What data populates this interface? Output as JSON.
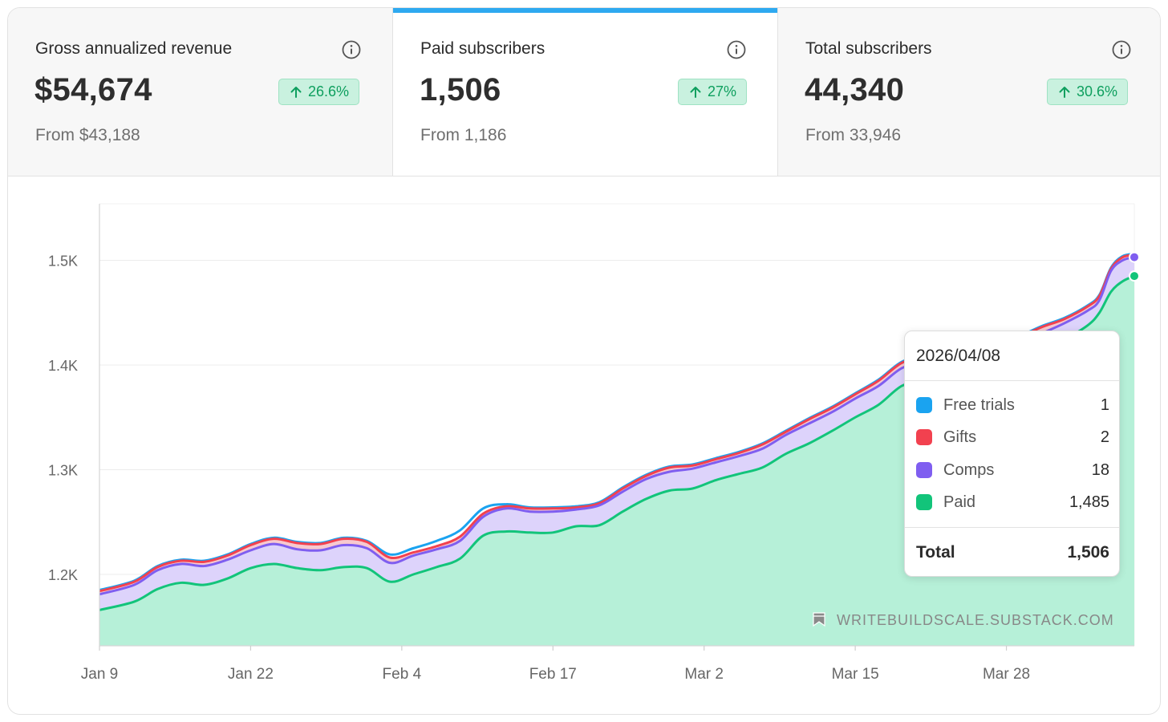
{
  "stats": [
    {
      "label": "Gross annualized revenue",
      "value": "$54,674",
      "change": "26.6%",
      "from": "From $43,188",
      "active": false
    },
    {
      "label": "Paid subscribers",
      "value": "1,506",
      "change": "27%",
      "from": "From 1,186",
      "active": true
    },
    {
      "label": "Total subscribers",
      "value": "44,340",
      "change": "30.6%",
      "from": "From 33,946",
      "active": false
    }
  ],
  "colors": {
    "free_trials": "#1aa3f0",
    "gifts": "#f2414f",
    "comps": "#7f5ef0",
    "paid": "#12c47a",
    "paid_fill": "#b6f0d8",
    "comps_fill": "#ddd3fb",
    "accent": "#2ea9f0",
    "badge_text": "#0e9f5e"
  },
  "icons": {
    "info": "info-icon",
    "trend": "arrow-up-icon",
    "watermark": "bookmark-icon"
  },
  "watermark": "WRITEBUILDSCALE.SUBSTACK.COM",
  "tooltip": {
    "date": "2026/04/08",
    "rows": [
      {
        "name": "Free trials",
        "value": "1",
        "color": "#1aa3f0"
      },
      {
        "name": "Gifts",
        "value": "2",
        "color": "#f2414f"
      },
      {
        "name": "Comps",
        "value": "18",
        "color": "#7f5ef0"
      },
      {
        "name": "Paid",
        "value": "1,485",
        "color": "#12c47a"
      }
    ],
    "total_label": "Total",
    "total_value": "1,506"
  },
  "chart_data": {
    "type": "area",
    "stacked": true,
    "x_start": "2026-01-09",
    "x_end": "2026-04-08",
    "x_tick_labels": [
      "Jan 9",
      "Jan 22",
      "Feb 4",
      "Feb 17",
      "Mar 2",
      "Mar 15",
      "Mar 28"
    ],
    "y_ticks": [
      1200,
      1300,
      1400,
      1500
    ],
    "y_tick_labels": [
      "1.2K",
      "1.3K",
      "1.4K",
      "1.5K"
    ],
    "ylim": [
      1131,
      1554
    ],
    "grid": true,
    "series": [
      {
        "name": "Paid",
        "points": [
          [
            "2026-01-09",
            1166
          ],
          [
            "2026-01-12",
            1174
          ],
          [
            "2026-01-14",
            1186
          ],
          [
            "2026-01-16",
            1192
          ],
          [
            "2026-01-18",
            1190
          ],
          [
            "2026-01-20",
            1196
          ],
          [
            "2026-01-22",
            1206
          ],
          [
            "2026-01-24",
            1210
          ],
          [
            "2026-01-26",
            1206
          ],
          [
            "2026-01-28",
            1204
          ],
          [
            "2026-01-30",
            1207
          ],
          [
            "2026-02-01",
            1206
          ],
          [
            "2026-02-03",
            1193
          ],
          [
            "2026-02-05",
            1200
          ],
          [
            "2026-02-07",
            1207
          ],
          [
            "2026-02-09",
            1215
          ],
          [
            "2026-02-11",
            1237
          ],
          [
            "2026-02-13",
            1241
          ],
          [
            "2026-02-15",
            1240
          ],
          [
            "2026-02-17",
            1240
          ],
          [
            "2026-02-19",
            1246
          ],
          [
            "2026-02-21",
            1247
          ],
          [
            "2026-02-23",
            1260
          ],
          [
            "2026-02-25",
            1272
          ],
          [
            "2026-02-27",
            1280
          ],
          [
            "2026-03-01",
            1282
          ],
          [
            "2026-03-03",
            1290
          ],
          [
            "2026-03-05",
            1296
          ],
          [
            "2026-03-07",
            1302
          ],
          [
            "2026-03-09",
            1315
          ],
          [
            "2026-03-11",
            1325
          ],
          [
            "2026-03-13",
            1337
          ],
          [
            "2026-03-15",
            1350
          ],
          [
            "2026-03-17",
            1362
          ],
          [
            "2026-03-19",
            1380
          ],
          [
            "2026-03-21",
            1386
          ],
          [
            "2026-03-23",
            1390
          ],
          [
            "2026-03-25",
            1394
          ],
          [
            "2026-03-27",
            1398
          ],
          [
            "2026-03-29",
            1404
          ],
          [
            "2026-03-31",
            1412
          ],
          [
            "2026-04-02",
            1424
          ],
          [
            "2026-04-04",
            1438
          ],
          [
            "2026-04-05",
            1450
          ],
          [
            "2026-04-06",
            1470
          ],
          [
            "2026-04-07",
            1480
          ],
          [
            "2026-04-08",
            1485
          ]
        ]
      },
      {
        "name": "Comps",
        "points": [
          [
            "2026-01-09",
            1181
          ],
          [
            "2026-01-12",
            1190
          ],
          [
            "2026-01-14",
            1204
          ],
          [
            "2026-01-16",
            1210
          ],
          [
            "2026-01-18",
            1208
          ],
          [
            "2026-01-20",
            1214
          ],
          [
            "2026-01-22",
            1223
          ],
          [
            "2026-01-24",
            1229
          ],
          [
            "2026-01-26",
            1224
          ],
          [
            "2026-01-28",
            1223
          ],
          [
            "2026-01-30",
            1228
          ],
          [
            "2026-02-01",
            1225
          ],
          [
            "2026-02-03",
            1211
          ],
          [
            "2026-02-05",
            1218
          ],
          [
            "2026-02-07",
            1224
          ],
          [
            "2026-02-09",
            1232
          ],
          [
            "2026-02-11",
            1255
          ],
          [
            "2026-02-13",
            1263
          ],
          [
            "2026-02-15",
            1260
          ],
          [
            "2026-02-17",
            1260
          ],
          [
            "2026-02-19",
            1262
          ],
          [
            "2026-02-21",
            1266
          ],
          [
            "2026-02-23",
            1279
          ],
          [
            "2026-02-25",
            1291
          ],
          [
            "2026-02-27",
            1298
          ],
          [
            "2026-03-01",
            1301
          ],
          [
            "2026-03-03",
            1307
          ],
          [
            "2026-03-05",
            1313
          ],
          [
            "2026-03-07",
            1320
          ],
          [
            "2026-03-09",
            1333
          ],
          [
            "2026-03-11",
            1344
          ],
          [
            "2026-03-13",
            1355
          ],
          [
            "2026-03-15",
            1368
          ],
          [
            "2026-03-17",
            1380
          ],
          [
            "2026-03-19",
            1397
          ],
          [
            "2026-03-21",
            1403
          ],
          [
            "2026-03-23",
            1406
          ],
          [
            "2026-03-25",
            1410
          ],
          [
            "2026-03-27",
            1413
          ],
          [
            "2026-03-29",
            1420
          ],
          [
            "2026-03-31",
            1430
          ],
          [
            "2026-04-02",
            1440
          ],
          [
            "2026-04-04",
            1452
          ],
          [
            "2026-04-05",
            1462
          ],
          [
            "2026-04-06",
            1490
          ],
          [
            "2026-04-07",
            1500
          ],
          [
            "2026-04-08",
            1503
          ]
        ]
      },
      {
        "name": "Gifts",
        "points": [
          [
            "2026-01-09",
            1184
          ],
          [
            "2026-01-12",
            1193
          ],
          [
            "2026-01-14",
            1207
          ],
          [
            "2026-01-16",
            1213
          ],
          [
            "2026-01-18",
            1212
          ],
          [
            "2026-01-20",
            1218
          ],
          [
            "2026-01-22",
            1228
          ],
          [
            "2026-01-24",
            1234
          ],
          [
            "2026-01-26",
            1230
          ],
          [
            "2026-01-28",
            1229
          ],
          [
            "2026-01-30",
            1234
          ],
          [
            "2026-02-01",
            1231
          ],
          [
            "2026-02-03",
            1216
          ],
          [
            "2026-02-05",
            1221
          ],
          [
            "2026-02-07",
            1227
          ],
          [
            "2026-02-09",
            1236
          ],
          [
            "2026-02-11",
            1258
          ],
          [
            "2026-02-13",
            1265
          ],
          [
            "2026-02-15",
            1263
          ],
          [
            "2026-02-17",
            1263
          ],
          [
            "2026-02-19",
            1264
          ],
          [
            "2026-02-21",
            1268
          ],
          [
            "2026-02-23",
            1282
          ],
          [
            "2026-02-25",
            1294
          ],
          [
            "2026-02-27",
            1302
          ],
          [
            "2026-03-01",
            1304
          ],
          [
            "2026-03-03",
            1310
          ],
          [
            "2026-03-05",
            1316
          ],
          [
            "2026-03-07",
            1324
          ],
          [
            "2026-03-09",
            1336
          ],
          [
            "2026-03-11",
            1348
          ],
          [
            "2026-03-13",
            1359
          ],
          [
            "2026-03-15",
            1372
          ],
          [
            "2026-03-17",
            1385
          ],
          [
            "2026-03-19",
            1402
          ],
          [
            "2026-03-21",
            1408
          ],
          [
            "2026-03-23",
            1410
          ],
          [
            "2026-03-25",
            1415
          ],
          [
            "2026-03-27",
            1419
          ],
          [
            "2026-03-29",
            1426
          ],
          [
            "2026-03-31",
            1436
          ],
          [
            "2026-04-02",
            1444
          ],
          [
            "2026-04-04",
            1456
          ],
          [
            "2026-04-05",
            1466
          ],
          [
            "2026-04-06",
            1492
          ],
          [
            "2026-04-07",
            1503
          ],
          [
            "2026-04-08",
            1505
          ]
        ]
      },
      {
        "name": "Free trials",
        "points": [
          [
            "2026-01-09",
            1185
          ],
          [
            "2026-01-12",
            1194
          ],
          [
            "2026-01-14",
            1208
          ],
          [
            "2026-01-16",
            1214
          ],
          [
            "2026-01-18",
            1213
          ],
          [
            "2026-01-20",
            1219
          ],
          [
            "2026-01-22",
            1229
          ],
          [
            "2026-01-24",
            1235
          ],
          [
            "2026-01-26",
            1231
          ],
          [
            "2026-01-28",
            1230
          ],
          [
            "2026-01-30",
            1235
          ],
          [
            "2026-02-01",
            1232
          ],
          [
            "2026-02-03",
            1219
          ],
          [
            "2026-02-05",
            1225
          ],
          [
            "2026-02-07",
            1232
          ],
          [
            "2026-02-09",
            1242
          ],
          [
            "2026-02-11",
            1263
          ],
          [
            "2026-02-13",
            1267
          ],
          [
            "2026-02-15",
            1264
          ],
          [
            "2026-02-17",
            1264
          ],
          [
            "2026-02-19",
            1265
          ],
          [
            "2026-02-21",
            1269
          ],
          [
            "2026-02-23",
            1283
          ],
          [
            "2026-02-25",
            1295
          ],
          [
            "2026-02-27",
            1303
          ],
          [
            "2026-03-01",
            1305
          ],
          [
            "2026-03-03",
            1311
          ],
          [
            "2026-03-05",
            1317
          ],
          [
            "2026-03-07",
            1325
          ],
          [
            "2026-03-09",
            1337
          ],
          [
            "2026-03-11",
            1349
          ],
          [
            "2026-03-13",
            1360
          ],
          [
            "2026-03-15",
            1373
          ],
          [
            "2026-03-17",
            1386
          ],
          [
            "2026-03-19",
            1403
          ],
          [
            "2026-03-21",
            1409
          ],
          [
            "2026-03-23",
            1411
          ],
          [
            "2026-03-25",
            1416
          ],
          [
            "2026-03-27",
            1420
          ],
          [
            "2026-03-29",
            1427
          ],
          [
            "2026-03-31",
            1437
          ],
          [
            "2026-04-02",
            1445
          ],
          [
            "2026-04-04",
            1457
          ],
          [
            "2026-04-05",
            1467
          ],
          [
            "2026-04-06",
            1493
          ],
          [
            "2026-04-07",
            1504
          ],
          [
            "2026-04-08",
            1506
          ]
        ]
      }
    ]
  }
}
